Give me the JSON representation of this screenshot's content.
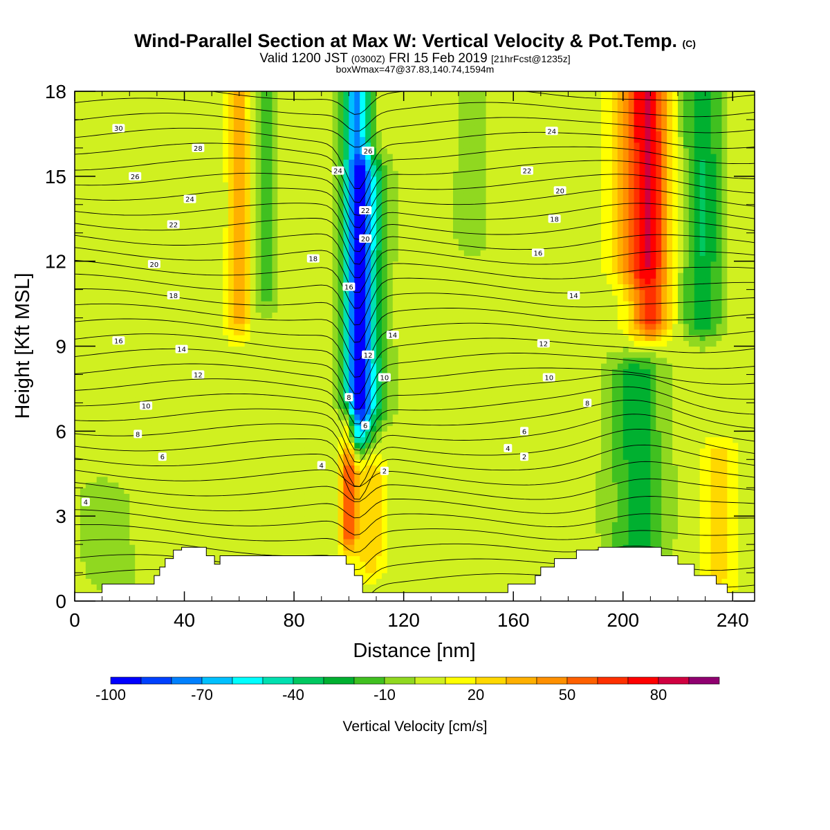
{
  "header": {
    "title": "Wind-Parallel Section at Max W: Vertical Velocity & Pot.Temp.",
    "title_mark": "(C)",
    "valid_prefix": "Valid 1200 JST",
    "valid_utc": "(0300Z)",
    "valid_date": "FRI 15 Feb 2019",
    "valid_fcst": "[21hrFcst@1235z]",
    "subtitle2": "boxWmax=47@37.83,140.74,1594m"
  },
  "chart_data": {
    "type": "contour",
    "xlabel": "Distance [nm]",
    "ylabel": "Height [Kft MSL]",
    "xlim": [
      0,
      248
    ],
    "ylim": [
      0,
      18
    ],
    "x_ticks": [
      0,
      40,
      80,
      120,
      160,
      200,
      240
    ],
    "y_ticks": [
      0,
      3,
      6,
      9,
      12,
      15,
      18
    ],
    "filled_variable": "vertical velocity",
    "contour_variable": "potential temperature",
    "colorbar": {
      "title": "Vertical Velocity [cm/s]",
      "levels": [
        -100,
        -90,
        -80,
        -70,
        -60,
        -50,
        -40,
        -30,
        -20,
        -10,
        0,
        10,
        20,
        30,
        40,
        50,
        60,
        70,
        80,
        90,
        100
      ],
      "labels": [
        "-100",
        "-70",
        "-40",
        "-10",
        "20",
        "50",
        "80"
      ],
      "label_values": [
        -100,
        -70,
        -40,
        -10,
        20,
        50,
        80
      ],
      "colors": [
        "#0000ff",
        "#0040ff",
        "#0080ff",
        "#00c0ff",
        "#00ffff",
        "#00e0b0",
        "#00c860",
        "#00b030",
        "#40c020",
        "#90d820",
        "#d0f020",
        "#ffff00",
        "#ffd800",
        "#ffb000",
        "#ff9000",
        "#ff6000",
        "#ff3000",
        "#ff0000",
        "#d00040",
        "#900070",
        "#6000a0"
      ]
    },
    "background_value": 5,
    "features": [
      {
        "kind": "downdraft",
        "x_center": 103,
        "x_width": 5,
        "z_bottom": 6,
        "z_top": 18,
        "peak": -75
      },
      {
        "kind": "downdraft",
        "x_center": 107,
        "x_width": 7,
        "z_bottom": 7,
        "z_top": 15,
        "peak": -40
      },
      {
        "kind": "updraft",
        "x_center": 210,
        "x_width": 7,
        "z_bottom": 10,
        "z_top": 18,
        "peak": 60
      },
      {
        "kind": "updraft",
        "x_center": 203,
        "x_width": 8,
        "z_bottom": 12,
        "z_top": 18,
        "peak": 30
      },
      {
        "kind": "downdraft",
        "x_center": 229,
        "x_width": 7,
        "z_bottom": 10,
        "z_top": 18,
        "peak": -35
      },
      {
        "kind": "downdraft",
        "x_center": 205,
        "x_width": 10,
        "z_bottom": 1.2,
        "z_top": 8,
        "peak": -30
      },
      {
        "kind": "updraft",
        "x_center": 100,
        "x_width": 3,
        "z_bottom": 2.5,
        "z_top": 6,
        "peak": 55
      },
      {
        "kind": "updraft",
        "x_center": 60,
        "x_width": 4,
        "z_bottom": 10,
        "z_top": 18,
        "peak": 30
      },
      {
        "kind": "updraft",
        "x_center": 108,
        "x_width": 5,
        "z_bottom": 1.5,
        "z_top": 4.5,
        "peak": 22
      },
      {
        "kind": "downdraft",
        "x_center": 70,
        "x_width": 4,
        "z_bottom": 11,
        "z_top": 18,
        "peak": -20
      },
      {
        "kind": "downdraft",
        "x_center": 145,
        "x_width": 6,
        "z_bottom": 13,
        "z_top": 18,
        "peak": -12
      },
      {
        "kind": "updraft",
        "x_center": 235,
        "x_width": 6,
        "z_bottom": 1,
        "z_top": 5,
        "peak": 20
      },
      {
        "kind": "downdraft",
        "x_center": 12,
        "x_width": 10,
        "z_bottom": 1,
        "z_top": 3.5,
        "peak": -12
      }
    ],
    "terrain": {
      "x": [
        0,
        10,
        10,
        29,
        29,
        31,
        31,
        33,
        33,
        36,
        36,
        39,
        39,
        48,
        48,
        51,
        51,
        53,
        53,
        71,
        71,
        99,
        99,
        102,
        102,
        105,
        105,
        110,
        110,
        158,
        158,
        168,
        168,
        170,
        170,
        175,
        175,
        183,
        183,
        191,
        191,
        214,
        214,
        220,
        220,
        226,
        226,
        234,
        234,
        238,
        238,
        248
      ],
      "z": [
        0.3,
        0.3,
        0.6,
        0.6,
        0.9,
        0.9,
        1.2,
        1.2,
        1.5,
        1.5,
        1.8,
        1.8,
        1.9,
        1.9,
        1.6,
        1.6,
        1.3,
        1.3,
        1.6,
        1.6,
        1.6,
        1.6,
        1.3,
        1.3,
        0.9,
        0.9,
        0.3,
        0.3,
        0.3,
        0.3,
        0.6,
        0.6,
        0.9,
        0.9,
        1.2,
        1.2,
        1.5,
        1.5,
        1.8,
        1.8,
        1.9,
        1.9,
        1.6,
        1.6,
        1.3,
        1.3,
        0.9,
        0.9,
        0.6,
        0.6,
        0.3,
        0.3
      ]
    },
    "isentrope_labels": [
      {
        "text": "30",
        "x": 16,
        "z": 16.7
      },
      {
        "text": "28",
        "x": 45,
        "z": 16.0
      },
      {
        "text": "26",
        "x": 22,
        "z": 15.0
      },
      {
        "text": "24",
        "x": 42,
        "z": 14.2
      },
      {
        "text": "22",
        "x": 36,
        "z": 13.3
      },
      {
        "text": "20",
        "x": 29,
        "z": 11.9
      },
      {
        "text": "18",
        "x": 36,
        "z": 10.8
      },
      {
        "text": "16",
        "x": 16,
        "z": 9.2
      },
      {
        "text": "14",
        "x": 39,
        "z": 8.9
      },
      {
        "text": "12",
        "x": 45,
        "z": 8.0
      },
      {
        "text": "10",
        "x": 26,
        "z": 6.9
      },
      {
        "text": "8",
        "x": 23,
        "z": 5.9
      },
      {
        "text": "6",
        "x": 32,
        "z": 5.1
      },
      {
        "text": "4",
        "x": 4,
        "z": 3.5
      },
      {
        "text": "4",
        "x": 90,
        "z": 4.8
      },
      {
        "text": "8",
        "x": 100,
        "z": 7.2
      },
      {
        "text": "6",
        "x": 106,
        "z": 6.2
      },
      {
        "text": "2",
        "x": 113,
        "z": 4.6
      },
      {
        "text": "10",
        "x": 113,
        "z": 7.9
      },
      {
        "text": "12",
        "x": 107,
        "z": 8.7
      },
      {
        "text": "14",
        "x": 116,
        "z": 9.4
      },
      {
        "text": "16",
        "x": 100,
        "z": 11.1
      },
      {
        "text": "18",
        "x": 87,
        "z": 12.1
      },
      {
        "text": "20",
        "x": 106,
        "z": 12.8
      },
      {
        "text": "22",
        "x": 106,
        "z": 13.8
      },
      {
        "text": "24",
        "x": 96,
        "z": 15.2
      },
      {
        "text": "26",
        "x": 107,
        "z": 15.9
      },
      {
        "text": "24",
        "x": 174,
        "z": 16.6
      },
      {
        "text": "22",
        "x": 165,
        "z": 15.2
      },
      {
        "text": "20",
        "x": 177,
        "z": 14.5
      },
      {
        "text": "18",
        "x": 175,
        "z": 13.5
      },
      {
        "text": "16",
        "x": 169,
        "z": 12.3
      },
      {
        "text": "14",
        "x": 182,
        "z": 10.8
      },
      {
        "text": "12",
        "x": 171,
        "z": 9.1
      },
      {
        "text": "10",
        "x": 173,
        "z": 7.9
      },
      {
        "text": "8",
        "x": 187,
        "z": 7.0
      },
      {
        "text": "6",
        "x": 164,
        "z": 6.0
      },
      {
        "text": "4",
        "x": 158,
        "z": 5.4
      },
      {
        "text": "2",
        "x": 164,
        "z": 5.1
      }
    ]
  }
}
